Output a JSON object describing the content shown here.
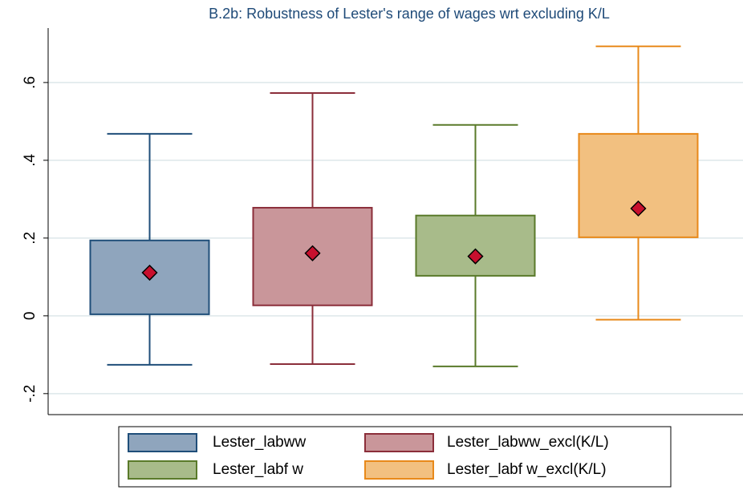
{
  "chart_data": {
    "type": "box",
    "title": "B.2b: Robustness of Lester's range of wages wrt excluding K/L",
    "ylim": [
      -0.254,
      0.74
    ],
    "yticks": [
      {
        "value": -0.2,
        "label": "-.2"
      },
      0,
      {
        "value": 0.2,
        "label": ".2"
      },
      {
        "value": 0.4,
        "label": ".4"
      },
      {
        "value": 0.6,
        "label": ".6"
      }
    ],
    "grid": true,
    "legend": "bottom",
    "mean_color": "#c8102e",
    "series": [
      {
        "name": "Lester_labww",
        "color": "#1f4e79",
        "fill": "#8fa5bd",
        "whisker_low": -0.126,
        "q1": 0.004,
        "q3": 0.194,
        "whisker_high": 0.468,
        "mean": 0.111
      },
      {
        "name": "Lester_labww_excl(K/L)",
        "color": "#8b2e3a",
        "fill": "#c9969a",
        "whisker_low": -0.124,
        "q1": 0.027,
        "q3": 0.278,
        "whisker_high": 0.573,
        "mean": 0.161
      },
      {
        "name": "Lester_labf w",
        "color": "#5a7a2a",
        "fill": "#a8bb8a",
        "whisker_low": -0.13,
        "q1": 0.103,
        "q3": 0.258,
        "whisker_high": 0.491,
        "mean": 0.153
      },
      {
        "name": "Lester_labf w_excl(K/L)",
        "color": "#e8891a",
        "fill": "#f2c080",
        "whisker_low": -0.01,
        "q1": 0.202,
        "q3": 0.468,
        "whisker_high": 0.693,
        "mean": 0.276
      }
    ]
  }
}
